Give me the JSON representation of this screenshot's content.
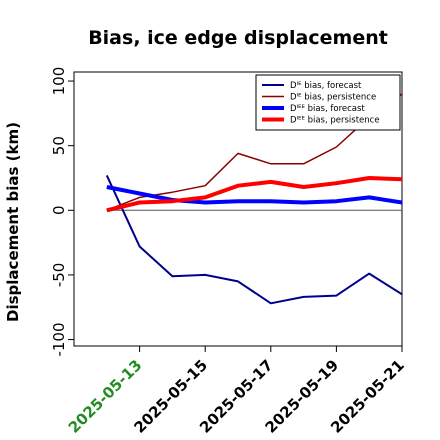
{
  "chart_data": {
    "type": "line",
    "title": "Bias, ice edge displacement",
    "xlabel": "",
    "ylabel": "Displacement bias (km)",
    "x": [
      "2025-05-12",
      "2025-05-13",
      "2025-05-14",
      "2025-05-15",
      "2025-05-16",
      "2025-05-17",
      "2025-05-18",
      "2025-05-19",
      "2025-05-20",
      "2025-05-21"
    ],
    "xticks": [
      "2025-05-13",
      "2025-05-15",
      "2025-05-17",
      "2025-05-19",
      "2025-05-21"
    ],
    "xtick_colors": [
      "#228b22",
      "#000000",
      "#000000",
      "#000000",
      "#000000"
    ],
    "xlim": [
      "2025-05-11",
      "2025-05-21"
    ],
    "yticks": [
      -100,
      -50,
      0,
      50,
      100
    ],
    "ylim": [
      -105,
      107
    ],
    "zero_line": true,
    "grid": false,
    "legend_position": "top-right",
    "series": [
      {
        "name": "Dᴵᴱ bias, forecast",
        "color": "#00008b",
        "width": 2,
        "values": [
          27,
          -28,
          -51,
          -50,
          -55,
          -72,
          -67,
          -66,
          -49,
          -65
        ]
      },
      {
        "name": "Dᴵᴱ bias, persistence",
        "color": "#8b0000",
        "width": 1.5,
        "values": [
          0,
          10,
          14,
          19,
          44,
          36,
          36,
          49,
          72,
          90
        ]
      },
      {
        "name": "Dᴵᴱᴱ bias, forecast",
        "color": "#0000ff",
        "width": 4,
        "values": [
          18,
          13,
          8,
          6,
          7,
          7,
          6,
          7,
          10,
          6
        ]
      },
      {
        "name": "Dᴵᴱᴱ bias, persistence",
        "color": "#ff0000",
        "width": 4,
        "values": [
          0,
          6,
          7,
          10,
          19,
          22,
          18,
          21,
          25,
          24
        ]
      }
    ]
  }
}
